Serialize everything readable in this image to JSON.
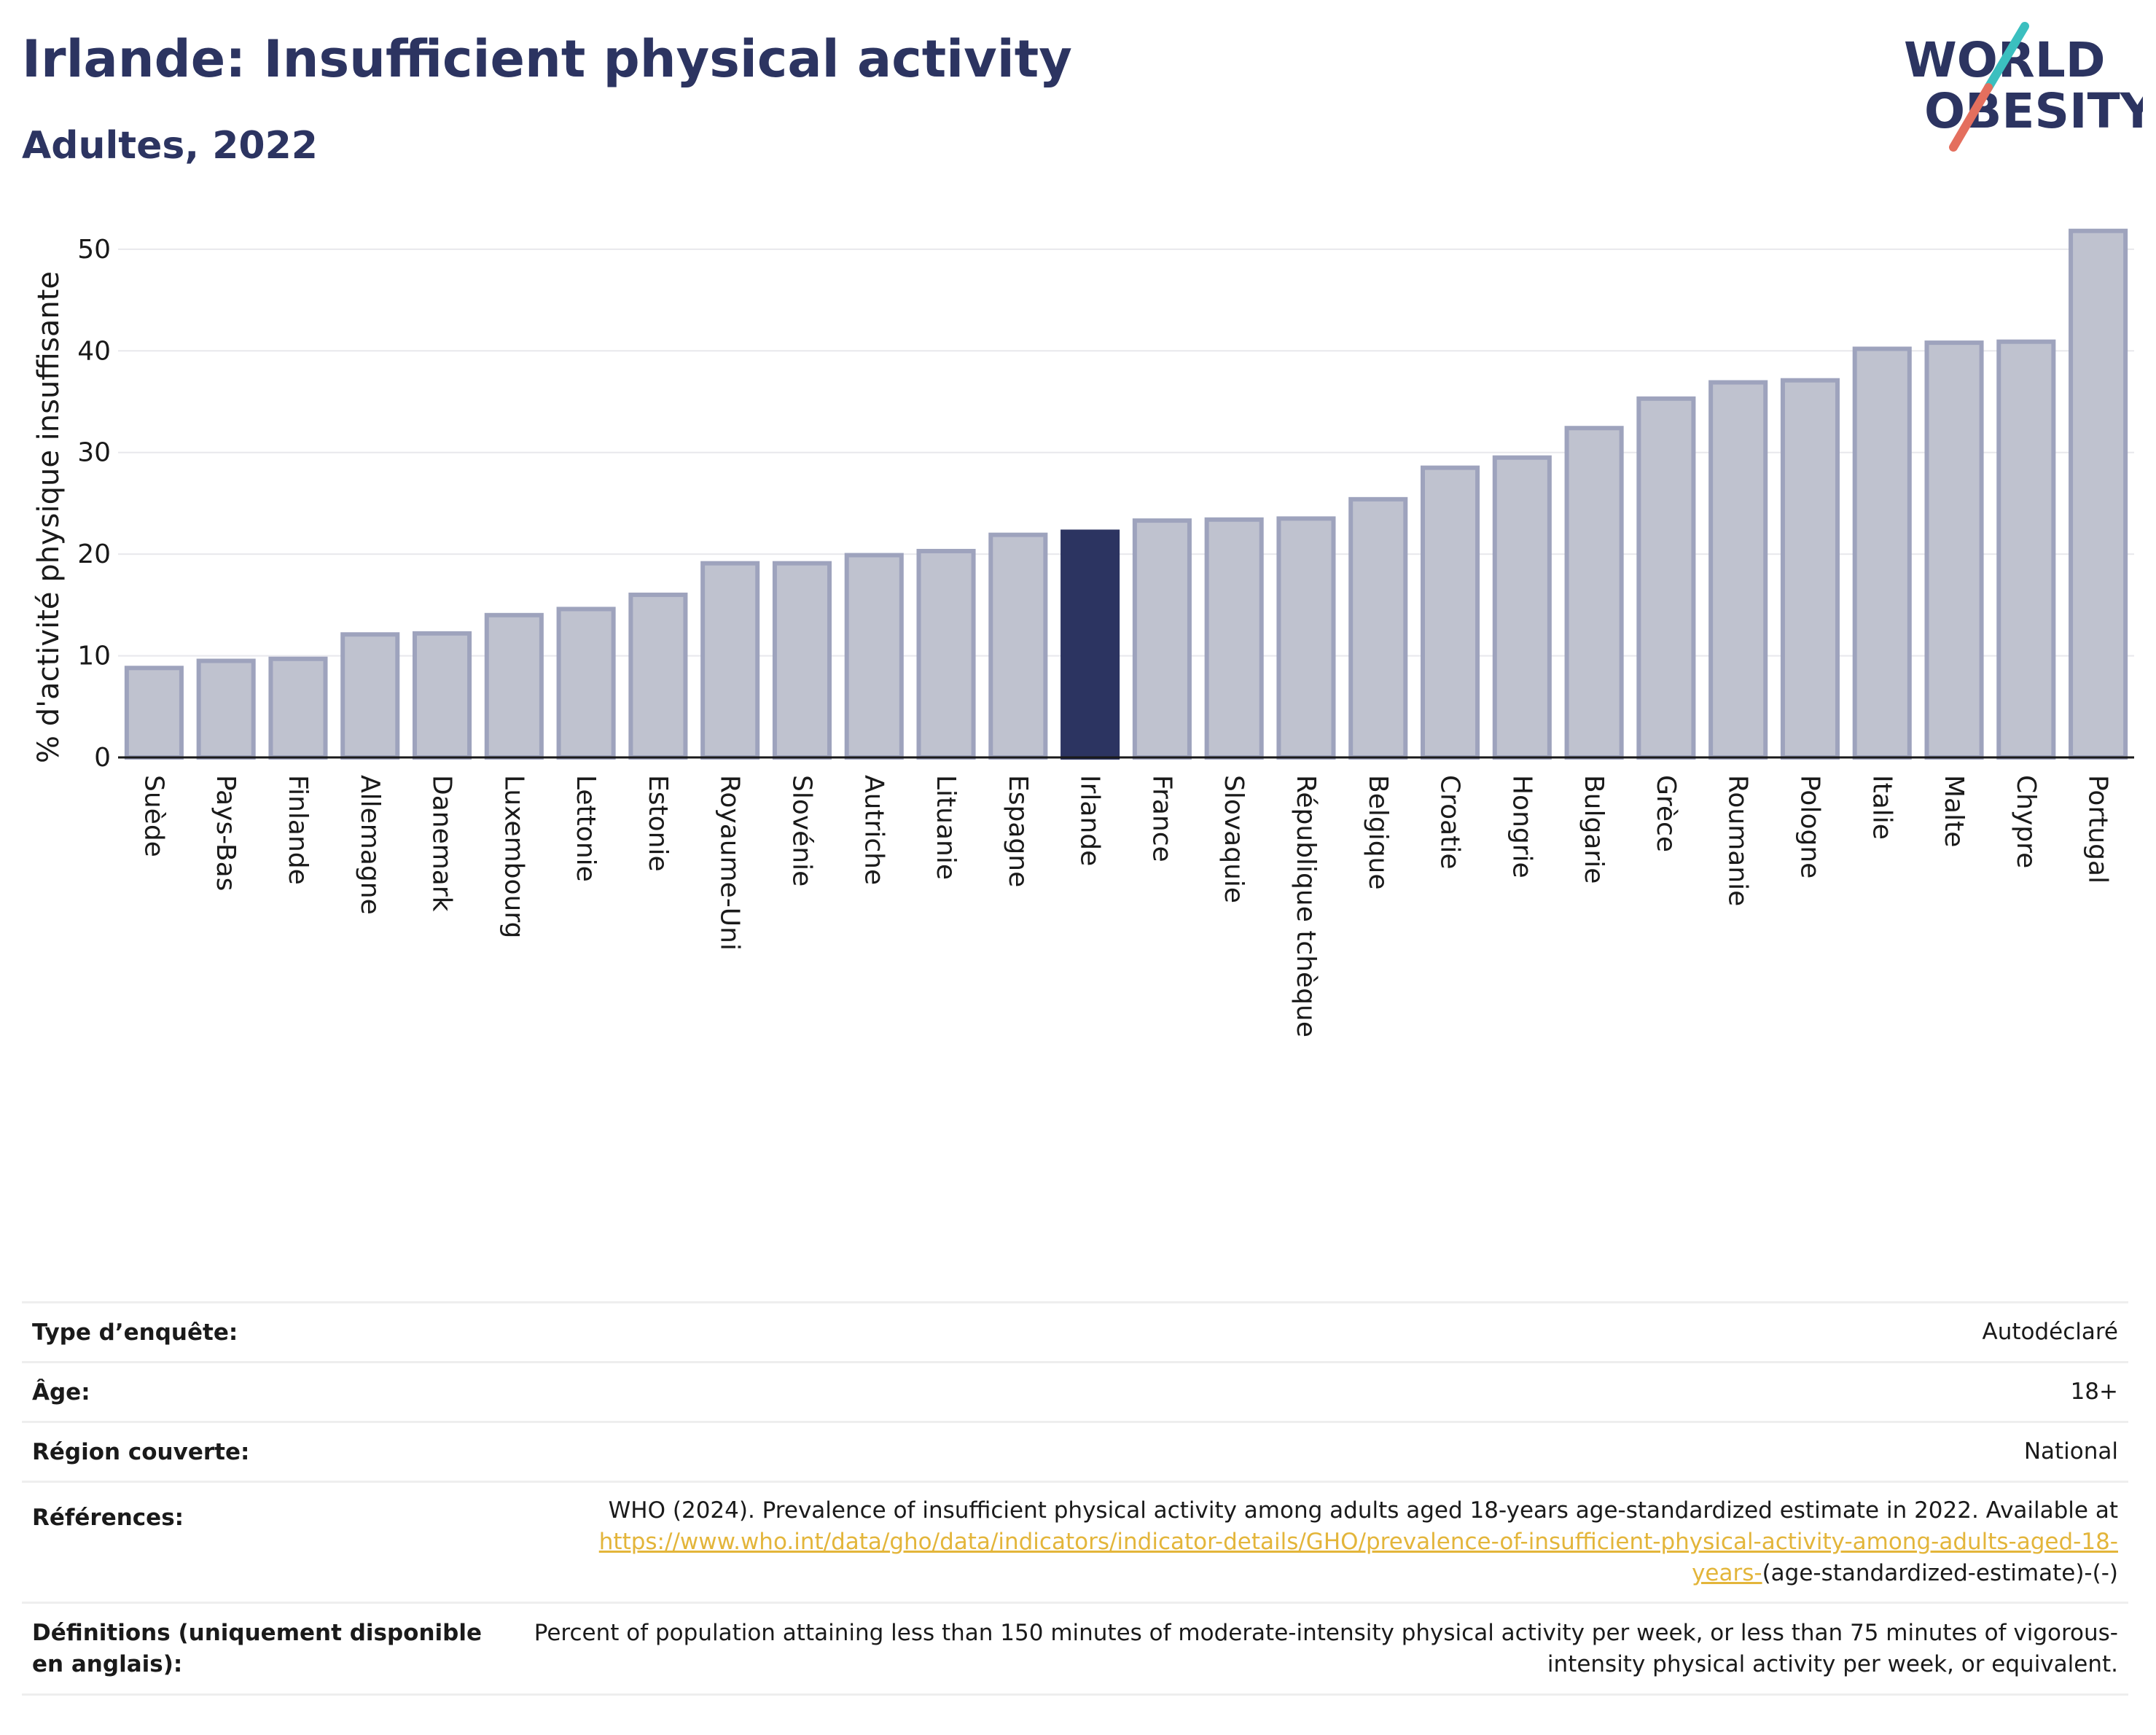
{
  "header": {
    "title": "Irlande: Insufficient physical activity",
    "subtitle": "Adultes, 2022"
  },
  "logo": {
    "line1": "WORLD",
    "line2": "OBESITY",
    "accent_colors": [
      "#3bbfbf",
      "#e46f5e"
    ],
    "text_color": "#2c3461"
  },
  "chart_data": {
    "type": "bar",
    "title": "Irlande: Insufficient physical activity",
    "subtitle": "Adultes, 2022",
    "xlabel": "",
    "ylabel": "% d'activité physique insuffisante",
    "ylim": [
      0,
      53
    ],
    "yticks": [
      0,
      10,
      20,
      30,
      40,
      50
    ],
    "grid": true,
    "highlight": "Irlande",
    "colors": {
      "bar_fill": "#bfc2cf",
      "bar_stroke": "#9ea3bd",
      "highlight_fill": "#2c3461",
      "grid": "#e8e8ec",
      "axis": "#1a1a1a"
    },
    "categories": [
      "Suède",
      "Pays-Bas",
      "Finlande",
      "Allemagne",
      "Danemark",
      "Luxembourg",
      "Lettonie",
      "Estonie",
      "Royaume-Uni",
      "Slovénie",
      "Autriche",
      "Lituanie",
      "Espagne",
      "Irlande",
      "France",
      "Slovaquie",
      "République tchèque",
      "Belgique",
      "Croatie",
      "Hongrie",
      "Bulgarie",
      "Grèce",
      "Roumanie",
      "Pologne",
      "Italie",
      "Malte",
      "Chypre",
      "Portugal"
    ],
    "values": [
      8.8,
      9.5,
      9.7,
      12.1,
      12.2,
      14.0,
      14.6,
      16.0,
      19.1,
      19.1,
      19.9,
      20.3,
      21.9,
      22.2,
      23.3,
      23.4,
      23.5,
      25.4,
      28.5,
      29.5,
      32.4,
      35.3,
      36.9,
      37.1,
      40.2,
      40.8,
      40.9,
      51.8
    ]
  },
  "metadata": {
    "rows": [
      {
        "label": "Type d’enquête:",
        "value": "Autodéclaré"
      },
      {
        "label": "Âge:",
        "value": "18+"
      },
      {
        "label": "Région couverte:",
        "value": "National"
      },
      {
        "label": "Références:",
        "value_prefix": "WHO (2024). Prevalence of insufficient physical activity among adults aged 18-years age-standardized estimate in 2022. Available at",
        "link_text": "https://www.who.int/data/gho/data/indicators/indicator-details/GHO/prevalence-of-insufficient-physical-activity-among-adults-aged-18-years-",
        "value_suffix": "(age-standardized-estimate)-(-)"
      },
      {
        "label": "Définitions (uniquement disponible en anglais):",
        "value": "Percent of population attaining less than 150 minutes of moderate-intensity physical activity per week, or less than 75 minutes of vigorous-intensity physical activity per week, or equivalent."
      }
    ]
  }
}
